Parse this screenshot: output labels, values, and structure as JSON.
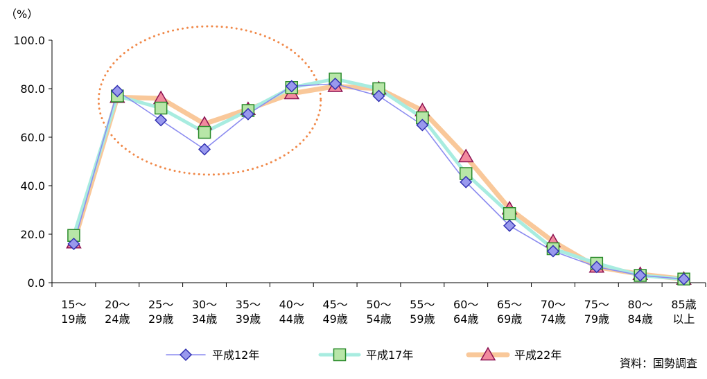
{
  "chart_data": {
    "type": "line",
    "unit_label": "（%）",
    "ylim": [
      0,
      100
    ],
    "yticks": [
      "0.0",
      "20.0",
      "40.0",
      "60.0",
      "80.0",
      "100.0"
    ],
    "ytick_values": [
      0,
      20,
      40,
      60,
      80,
      100
    ],
    "categories": [
      [
        "15～",
        "19歳"
      ],
      [
        "20～",
        "24歳"
      ],
      [
        "25～",
        "29歳"
      ],
      [
        "30～",
        "34歳"
      ],
      [
        "35～",
        "39歳"
      ],
      [
        "40～",
        "44歳"
      ],
      [
        "45～",
        "49歳"
      ],
      [
        "50～",
        "54歳"
      ],
      [
        "55～",
        "59歳"
      ],
      [
        "60～",
        "64歳"
      ],
      [
        "65～",
        "69歳"
      ],
      [
        "70～",
        "74歳"
      ],
      [
        "75～",
        "79歳"
      ],
      [
        "80～",
        "84歳"
      ],
      [
        "85歳",
        "以上"
      ]
    ],
    "series": [
      {
        "name": "平成22年",
        "marker": "triangle",
        "line_color": "#f9c89a",
        "marker_fill": "#f28a9e",
        "marker_stroke": "#8a1050",
        "values": [
          16.5,
          76.5,
          76.0,
          65.5,
          71.5,
          78.0,
          81.0,
          80.0,
          71.0,
          52.0,
          30.5,
          17.0,
          6.5,
          3.5,
          1.5
        ]
      },
      {
        "name": "平成17年",
        "marker": "square",
        "line_color": "#a8ece0",
        "marker_fill": "#b8e6a8",
        "marker_stroke": "#2a8a2a",
        "values": [
          19.5,
          77.0,
          72.0,
          62.0,
          71.0,
          80.5,
          84.0,
          80.0,
          68.0,
          45.0,
          28.5,
          14.0,
          8.0,
          3.0,
          1.5
        ]
      },
      {
        "name": "平成12年",
        "marker": "diamond",
        "line_color": "#8c8cf0",
        "marker_fill": "#9999ee",
        "marker_stroke": "#3030b0",
        "values": [
          16.0,
          79.0,
          67.0,
          55.0,
          69.5,
          81.0,
          82.0,
          77.0,
          65.0,
          41.5,
          23.5,
          13.0,
          6.5,
          3.0,
          1.5
        ]
      }
    ],
    "legend_order": [
      "平成12年",
      "平成17年",
      "平成22年"
    ],
    "legend_placement": "bottom-center",
    "highlight": {
      "shape": "dotted-ellipse",
      "color": "#f08848",
      "category_range": [
        "20～24歳",
        "40～44歳"
      ]
    },
    "grid": false
  },
  "source_note": "資料：国勢調査"
}
